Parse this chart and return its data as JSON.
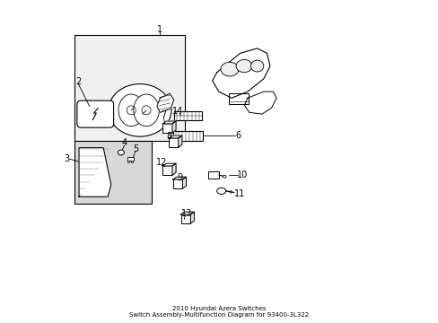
{
  "title": "2010 Hyundai Azera Switches\nSwitch Assembly-Multifunction Diagram for 93400-3L322",
  "bg_color": "#ffffff",
  "line_color": "#000000",
  "label_fontsize": 7,
  "title_fontsize": 6.5,
  "box1_bg": "#f0f0f0",
  "box2_bg": "#d8d8d8"
}
